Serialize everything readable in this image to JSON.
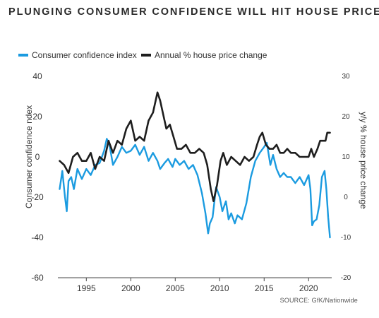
{
  "title": "PLUNGING CONSUMER CONFIDENCE WILL HIT HOUSE PRICES",
  "source": "SOURCE: GfK/Nationwide",
  "colors": {
    "confidence": "#1b9be0",
    "house_price": "#1e1e1e",
    "axis": "#444444",
    "text": "#333333"
  },
  "chart_data": {
    "type": "line",
    "title": "PLUNGING CONSUMER CONFIDENCE WILL HIT HOUSE PRICES",
    "xlabel": "",
    "ylabel": "Consumer confidence ndex",
    "y2label": "y/y % house price change",
    "xlim": [
      1991.8,
      2022.6
    ],
    "ylim": [
      -60,
      40
    ],
    "y2lim": [
      -20,
      30
    ],
    "xticks": [
      1995,
      2000,
      2005,
      2010,
      2015,
      2020
    ],
    "yticks": [
      -60,
      -40,
      -20,
      0,
      20,
      40
    ],
    "y2ticks": [
      -20,
      -10,
      0,
      10,
      20,
      30
    ],
    "grid": false,
    "legend_position": "top-left",
    "series": [
      {
        "name": "Consumer confidence index",
        "axis": "left",
        "color": "#1b9be0",
        "x": [
          1992.0,
          1992.3,
          1992.6,
          1992.8,
          1993.0,
          1993.3,
          1993.6,
          1994.0,
          1994.5,
          1995.0,
          1995.5,
          1996.0,
          1996.5,
          1997.0,
          1997.3,
          1997.6,
          1998.0,
          1998.5,
          1999.0,
          1999.5,
          2000.0,
          2000.5,
          2001.0,
          2001.5,
          2002.0,
          2002.5,
          2003.0,
          2003.3,
          2003.8,
          2004.2,
          2004.7,
          2005.0,
          2005.5,
          2006.0,
          2006.5,
          2007.0,
          2007.5,
          2008.0,
          2008.4,
          2008.7,
          2008.9,
          2009.2,
          2009.6,
          2010.0,
          2010.3,
          2010.7,
          2011.0,
          2011.3,
          2011.7,
          2012.0,
          2012.5,
          2013.0,
          2013.5,
          2014.0,
          2014.5,
          2015.0,
          2015.3,
          2015.7,
          2016.0,
          2016.4,
          2016.8,
          2017.2,
          2017.6,
          2018.0,
          2018.5,
          2019.0,
          2019.5,
          2020.0,
          2020.2,
          2020.4,
          2020.6,
          2020.9,
          2021.2,
          2021.5,
          2021.8,
          2022.0,
          2022.2,
          2022.4
        ],
        "values": [
          -16,
          -7,
          -20,
          -27,
          -12,
          -10,
          -16,
          -6,
          -11,
          -6,
          -9,
          -4,
          -3,
          3,
          9,
          6,
          -4,
          0,
          5,
          2,
          3,
          6,
          1,
          5,
          -2,
          2,
          -2,
          -6,
          -3,
          -1,
          -5,
          -1,
          -4,
          -2,
          -6,
          -4,
          -9,
          -18,
          -28,
          -38,
          -33,
          -30,
          -15,
          -20,
          -27,
          -22,
          -31,
          -28,
          -33,
          -29,
          -31,
          -23,
          -10,
          -2,
          2,
          5,
          7,
          -4,
          1,
          -6,
          -10,
          -8,
          -10,
          -10,
          -13,
          -10,
          -14,
          -9,
          -16,
          -34,
          -32,
          -31,
          -24,
          -10,
          -7,
          -16,
          -30,
          -40
        ]
      },
      {
        "name": "Annual % house price change",
        "axis": "right",
        "color": "#1e1e1e",
        "x": [
          1992.0,
          1992.5,
          1993.0,
          1993.5,
          1994.0,
          1994.5,
          1995.0,
          1995.5,
          1996.0,
          1996.5,
          1997.0,
          1997.5,
          1998.0,
          1998.5,
          1999.0,
          1999.5,
          2000.0,
          2000.5,
          2001.0,
          2001.5,
          2002.0,
          2002.5,
          2003.0,
          2003.3,
          2003.7,
          2004.0,
          2004.4,
          2004.8,
          2005.2,
          2005.7,
          2006.2,
          2006.7,
          2007.2,
          2007.7,
          2008.2,
          2008.6,
          2009.0,
          2009.3,
          2009.7,
          2010.1,
          2010.4,
          2010.8,
          2011.3,
          2011.8,
          2012.3,
          2012.8,
          2013.3,
          2013.8,
          2014.2,
          2014.5,
          2014.8,
          2015.2,
          2015.6,
          2016.0,
          2016.4,
          2016.8,
          2017.2,
          2017.6,
          2018.0,
          2018.5,
          2019.0,
          2019.5,
          2020.0,
          2020.3,
          2020.6,
          2021.0,
          2021.3,
          2021.6,
          2021.9,
          2022.1,
          2022.4
        ],
        "values": [
          9,
          8,
          6,
          10,
          11,
          9,
          9,
          11,
          7,
          10,
          9,
          14,
          11,
          14,
          13,
          17,
          19,
          14,
          15,
          14,
          19,
          21,
          26,
          24,
          20,
          17,
          18,
          15,
          12,
          12,
          13,
          11,
          11,
          12,
          11,
          8,
          2,
          -1,
          3,
          9,
          11,
          8,
          10,
          9,
          8,
          10,
          9,
          10,
          13,
          15,
          16,
          13,
          12,
          12,
          13,
          11,
          11,
          12,
          11,
          11,
          10,
          10,
          10,
          12,
          10,
          12,
          14,
          14,
          14,
          16,
          16
        ]
      }
    ]
  }
}
